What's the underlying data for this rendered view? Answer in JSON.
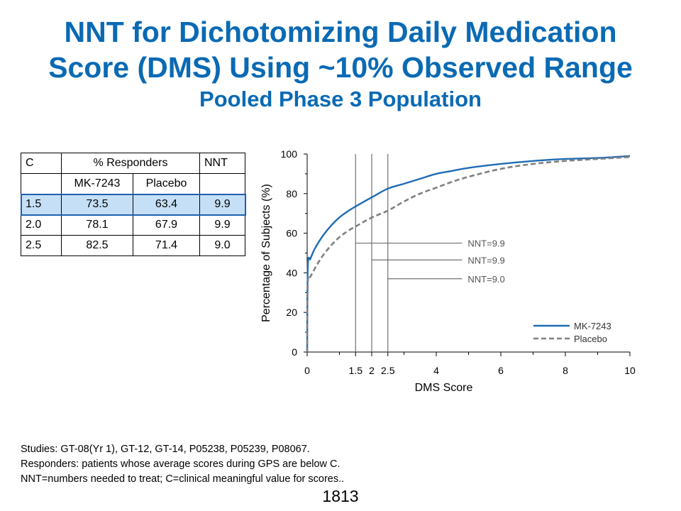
{
  "title_line1": "NNT for Dichotomizing Daily Medication",
  "title_line2": "Score (DMS) Using ~10% Observed Range",
  "subtitle": "Pooled Phase 3 Population",
  "table": {
    "headers": [
      "C",
      "% Responders",
      "NNT"
    ],
    "subheaders": [
      "",
      "MK-7243",
      "Placebo",
      ""
    ],
    "rows": [
      [
        "1.5",
        "73.5",
        "63.4",
        "9.9"
      ],
      [
        "2.0",
        "78.1",
        "67.9",
        "9.9"
      ],
      [
        "2.5",
        "82.5",
        "71.4",
        "9.0"
      ]
    ],
    "highlight_row": 0,
    "highlight_color": "#c5e0f6",
    "highlight_border": "#1f5fb0"
  },
  "chart_data": {
    "type": "line",
    "xlabel": "DMS Score",
    "ylabel": "Percentage of Subjects (%)",
    "xlim": [
      0,
      10
    ],
    "ylim": [
      0,
      100
    ],
    "x_ticks": [
      "0",
      "1.5",
      "2",
      "2.5",
      "4",
      "6",
      "8",
      "10"
    ],
    "x_tick_values": [
      0,
      1.5,
      2,
      2.5,
      4,
      6,
      8,
      10
    ],
    "y_ticks": [
      "0",
      "20",
      "40",
      "60",
      "80",
      "100"
    ],
    "y_tick_values": [
      0,
      20,
      40,
      60,
      80,
      100
    ],
    "grid": false,
    "legend_position": "bottom-right",
    "series": [
      {
        "name": "MK-7243",
        "style": "solid",
        "color": "#1f6cb5",
        "x": [
          0,
          0.02,
          0.1,
          0.2,
          0.3,
          0.5,
          0.75,
          1.0,
          1.25,
          1.5,
          2.0,
          2.5,
          3.0,
          3.5,
          4.0,
          4.5,
          5.0,
          6.0,
          7.0,
          8.0,
          9.0,
          10.0
        ],
        "y": [
          0,
          43,
          47,
          51,
          54,
          59,
          64,
          68,
          71,
          73.5,
          78.1,
          82.5,
          85,
          87.5,
          90,
          91.5,
          93,
          95,
          96.5,
          97.5,
          98,
          99
        ]
      },
      {
        "name": "Placebo",
        "style": "dashed",
        "color": "#808080",
        "x": [
          0,
          0.02,
          0.1,
          0.2,
          0.3,
          0.5,
          0.75,
          1.0,
          1.25,
          1.5,
          2.0,
          2.5,
          3.0,
          3.5,
          4.0,
          4.5,
          5.0,
          6.0,
          7.0,
          8.0,
          9.0,
          10.0
        ],
        "y": [
          0,
          35,
          38,
          41,
          44,
          49,
          54,
          58,
          61,
          63.4,
          67.9,
          71.4,
          76,
          80,
          83,
          86,
          88.5,
          92.5,
          95,
          96.5,
          97.5,
          98.5
        ]
      }
    ],
    "reference_lines": [
      1.5,
      2,
      2.5
    ],
    "annotations": [
      {
        "text": "NNT=9.9",
        "x_start": 1.5,
        "y": 55
      },
      {
        "text": "NNT=9.9",
        "x_start": 2,
        "y": 46.5
      },
      {
        "text": "NNT=9.0",
        "x_start": 2.5,
        "y": 37
      }
    ]
  },
  "notes": [
    "Studies: GT-08(Yr 1), GT-12, GT-14, P05238, P05239, P08067.",
    "Responders: patients whose average scores during GPS are below C.",
    "NNT=numbers needed to treat; C=clinical meaningful value for scores.."
  ],
  "page_number": "1813"
}
